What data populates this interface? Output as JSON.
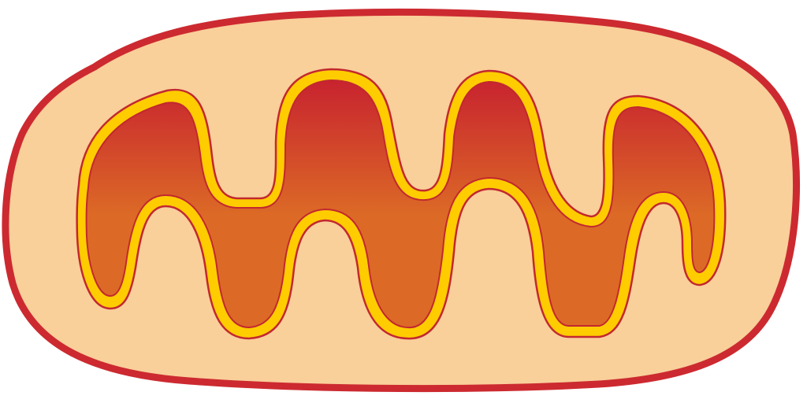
{
  "diagram": {
    "subject": "mitochondrion-icon",
    "colors": {
      "background": "#ffffff",
      "outer_membrane": "#cc2a30",
      "intermembrane_space": "#f9cf9a",
      "inner_membrane_outline": "#c2282f",
      "inner_membrane_fill": "#ffcc00",
      "matrix_top": "#c8232f",
      "matrix_bottom": "#dc6a26"
    }
  }
}
